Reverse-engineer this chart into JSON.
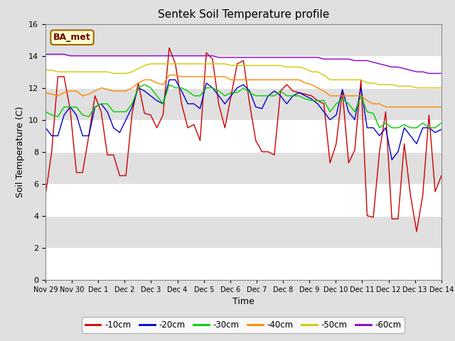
{
  "title": "Sentek Soil Temperature profile",
  "xlabel": "Time",
  "ylabel": "Soil Temperature (C)",
  "ylim": [
    0,
    16
  ],
  "annotation": "BA_met",
  "fig_facecolor": "#e0e0e0",
  "ax_facecolor": "#e0e0e0",
  "legend_labels": [
    "-10cm",
    "-20cm",
    "-30cm",
    "-40cm",
    "-50cm",
    "-60cm"
  ],
  "legend_colors": [
    "#cc0000",
    "#0000cc",
    "#00cc00",
    "#ff8800",
    "#cccc00",
    "#8800cc"
  ],
  "tick_labels": [
    "Nov 29",
    "Nov 30",
    "Dec 1",
    "Dec 2",
    "Dec 3",
    "Dec 4",
    "Dec 5",
    "Dec 6",
    "Dec 7",
    "Dec 8",
    "Dec 9",
    "Dec 10",
    "Dec 11",
    "Dec 12",
    "Dec 13",
    "Dec 14"
  ],
  "series": {
    "-10cm": {
      "color": "#cc0000",
      "y": [
        5.3,
        8.0,
        12.7,
        12.7,
        10.6,
        6.7,
        6.7,
        9.0,
        11.5,
        10.5,
        7.8,
        7.8,
        6.5,
        6.5,
        10.4,
        12.3,
        10.4,
        10.3,
        9.5,
        10.3,
        14.5,
        13.5,
        11.0,
        9.5,
        9.7,
        8.7,
        14.2,
        13.8,
        11.0,
        9.5,
        11.5,
        13.5,
        13.7,
        11.0,
        8.7,
        8.0,
        8.0,
        7.8,
        11.8,
        12.2,
        11.8,
        11.7,
        11.6,
        11.5,
        11.2,
        11.0,
        7.3,
        8.5,
        11.8,
        7.3,
        8.1,
        12.5,
        4.0,
        3.9,
        8.0,
        10.5,
        3.8,
        3.8,
        8.5,
        5.3,
        3.0,
        5.3,
        10.3,
        5.5,
        6.5
      ]
    },
    "-20cm": {
      "color": "#0000cc",
      "y": [
        9.5,
        9.0,
        9.0,
        10.3,
        10.8,
        10.3,
        9.0,
        9.0,
        10.8,
        11.0,
        10.5,
        9.5,
        9.2,
        10.0,
        10.8,
        12.0,
        11.8,
        11.5,
        11.2,
        11.0,
        12.5,
        12.5,
        11.8,
        11.0,
        11.0,
        10.7,
        12.3,
        12.0,
        11.5,
        11.0,
        11.5,
        12.0,
        12.2,
        11.8,
        10.8,
        10.7,
        11.5,
        11.8,
        11.5,
        11.0,
        11.5,
        11.7,
        11.5,
        11.3,
        11.0,
        10.5,
        10.0,
        10.3,
        11.9,
        10.5,
        10.0,
        12.0,
        9.5,
        9.5,
        9.0,
        9.5,
        7.5,
        8.0,
        9.5,
        9.0,
        8.5,
        9.5,
        9.5,
        9.2,
        9.4
      ]
    },
    "-30cm": {
      "color": "#00cc00",
      "y": [
        10.5,
        10.3,
        10.2,
        10.8,
        10.8,
        10.8,
        10.3,
        10.2,
        10.8,
        11.0,
        11.0,
        10.5,
        10.5,
        10.5,
        11.0,
        12.0,
        12.2,
        12.0,
        11.5,
        11.0,
        12.2,
        12.0,
        12.0,
        11.8,
        11.5,
        11.5,
        12.0,
        12.0,
        11.8,
        11.5,
        11.7,
        11.7,
        12.0,
        11.7,
        11.5,
        11.5,
        11.5,
        11.5,
        11.8,
        11.5,
        11.5,
        11.5,
        11.3,
        11.2,
        11.2,
        11.2,
        10.5,
        11.0,
        11.3,
        11.0,
        10.5,
        11.5,
        10.5,
        10.4,
        9.5,
        9.8,
        9.5,
        9.5,
        9.7,
        9.5,
        9.5,
        9.8,
        9.5,
        9.5,
        9.8
      ]
    },
    "-40cm": {
      "color": "#ff8800",
      "y": [
        11.7,
        11.6,
        11.5,
        11.7,
        11.8,
        11.8,
        11.5,
        11.6,
        11.8,
        12.0,
        11.9,
        11.8,
        11.8,
        11.8,
        12.0,
        12.3,
        12.5,
        12.5,
        12.3,
        12.2,
        12.8,
        12.8,
        12.7,
        12.7,
        12.7,
        12.7,
        12.7,
        12.7,
        12.7,
        12.7,
        12.5,
        12.5,
        12.5,
        12.5,
        12.5,
        12.5,
        12.5,
        12.5,
        12.5,
        12.5,
        12.5,
        12.5,
        12.3,
        12.2,
        12.0,
        11.8,
        11.5,
        11.5,
        11.5,
        11.5,
        11.5,
        11.5,
        11.2,
        11.0,
        11.0,
        10.8,
        10.8,
        10.8,
        10.8,
        10.8,
        10.8,
        10.8,
        10.8,
        10.8,
        10.8
      ]
    },
    "-50cm": {
      "color": "#cccc00",
      "y": [
        13.1,
        13.1,
        13.0,
        13.0,
        13.0,
        13.0,
        13.0,
        13.0,
        13.0,
        13.0,
        13.0,
        12.9,
        12.9,
        12.9,
        13.0,
        13.2,
        13.4,
        13.5,
        13.5,
        13.5,
        13.5,
        13.5,
        13.5,
        13.5,
        13.5,
        13.5,
        13.5,
        13.5,
        13.5,
        13.5,
        13.4,
        13.4,
        13.4,
        13.4,
        13.4,
        13.4,
        13.4,
        13.4,
        13.4,
        13.3,
        13.3,
        13.3,
        13.2,
        13.0,
        13.0,
        12.8,
        12.5,
        12.5,
        12.5,
        12.5,
        12.5,
        12.5,
        12.3,
        12.3,
        12.2,
        12.2,
        12.2,
        12.1,
        12.1,
        12.1,
        12.0,
        12.0,
        12.0,
        12.0,
        12.0
      ]
    },
    "-60cm": {
      "color": "#8800cc",
      "y": [
        14.1,
        14.1,
        14.1,
        14.1,
        14.0,
        14.0,
        14.0,
        14.0,
        14.0,
        14.0,
        14.0,
        14.0,
        14.0,
        14.0,
        14.0,
        14.0,
        14.0,
        14.0,
        14.0,
        14.0,
        14.0,
        14.0,
        14.0,
        14.0,
        14.0,
        14.0,
        14.0,
        14.0,
        13.9,
        13.9,
        13.9,
        13.9,
        13.9,
        13.9,
        13.9,
        13.9,
        13.9,
        13.9,
        13.9,
        13.9,
        13.9,
        13.9,
        13.9,
        13.9,
        13.9,
        13.8,
        13.8,
        13.8,
        13.8,
        13.8,
        13.7,
        13.7,
        13.7,
        13.6,
        13.5,
        13.4,
        13.3,
        13.3,
        13.2,
        13.1,
        13.0,
        13.0,
        12.9,
        12.9,
        12.9
      ]
    }
  }
}
